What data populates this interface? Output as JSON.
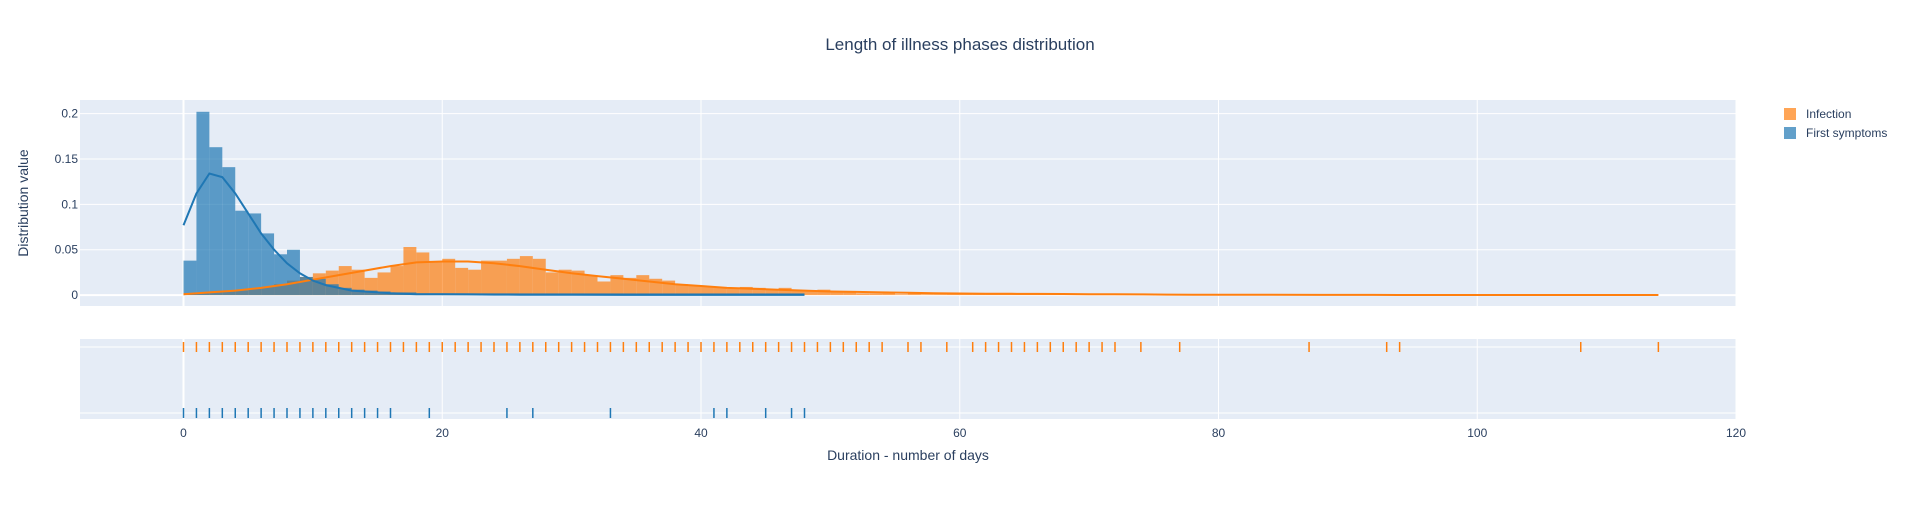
{
  "chart_data": {
    "type": "histogram",
    "title": "Length of illness phases distribution",
    "xlabel": "Duration - number of days",
    "ylabel": "Distribution value",
    "xlim": [
      -8,
      120
    ],
    "ylim": [
      -0.012,
      0.215
    ],
    "x_ticks": [
      0,
      20,
      40,
      60,
      80,
      100,
      120
    ],
    "y_ticks": [
      0,
      0.05,
      0.1,
      0.15,
      0.2
    ],
    "y_tick_labels": [
      "0",
      "0.05",
      "0.1",
      "0.15",
      "0.2"
    ],
    "grid": true,
    "legend_position": "top-right",
    "bin_width": 1,
    "series": [
      {
        "name": "Infection",
        "color": "#ff7f0e",
        "bin_start": 0,
        "values": [
          0.002,
          0.002,
          0.003,
          0.004,
          0.005,
          0.007,
          0.009,
          0.012,
          0.016,
          0.02,
          0.024,
          0.027,
          0.032,
          0.028,
          0.019,
          0.025,
          0.032,
          0.053,
          0.047,
          0.036,
          0.04,
          0.03,
          0.028,
          0.038,
          0.038,
          0.04,
          0.043,
          0.04,
          0.025,
          0.028,
          0.027,
          0.022,
          0.015,
          0.022,
          0.019,
          0.022,
          0.018,
          0.016,
          0.012,
          0.011,
          0.01,
          0.008,
          0.007,
          0.009,
          0.008,
          0.006,
          0.008,
          0.005,
          0.004,
          0.006,
          0.003,
          0.003,
          0.002,
          0.002,
          0.003,
          0.001,
          0.002,
          0.001,
          0.001,
          0.002,
          0.001,
          0.001,
          0.001,
          0.001,
          0.001,
          0.001,
          0.001,
          0.001,
          0.001,
          0.001,
          0.001,
          0.001,
          0.001,
          0.001,
          0.001,
          0.001,
          0.001,
          0.001,
          0.001,
          0.001,
          0.001,
          0.001,
          0.001,
          0.001,
          0.001,
          0.001,
          0.001,
          0.001,
          0.001,
          0.001,
          0.001,
          0.001,
          0.001,
          0.001,
          0.001,
          0.001,
          0.001,
          0.001,
          0.001,
          0.001,
          0.001,
          0.001,
          0.001,
          0.001,
          0.001,
          0.001,
          0.001,
          0.001,
          0.001,
          0.001,
          0.001,
          0.001,
          0.001,
          0.001
        ],
        "kde_x": [
          0,
          2,
          4,
          6,
          8,
          10,
          12,
          14,
          16,
          18,
          20,
          22,
          24,
          26,
          28,
          30,
          32,
          34,
          36,
          38,
          40,
          42,
          44,
          46,
          48,
          50,
          52,
          54,
          56,
          58,
          60,
          62,
          64,
          66,
          68,
          70,
          72,
          74,
          76,
          78,
          80,
          84,
          88,
          92,
          96,
          100,
          104,
          108,
          112,
          114
        ],
        "kde_y": [
          0.001,
          0.003,
          0.005,
          0.008,
          0.012,
          0.017,
          0.022,
          0.027,
          0.032,
          0.036,
          0.037,
          0.037,
          0.035,
          0.032,
          0.028,
          0.024,
          0.021,
          0.018,
          0.015,
          0.012,
          0.01,
          0.008,
          0.007,
          0.006,
          0.005,
          0.004,
          0.0035,
          0.003,
          0.0025,
          0.002,
          0.0018,
          0.0016,
          0.0014,
          0.0013,
          0.0012,
          0.001,
          0.0009,
          0.0008,
          0.0006,
          0.0005,
          0.0004,
          0.0003,
          0.0002,
          0.0002,
          0.0001,
          0.0001,
          0.0001,
          0.0001,
          0.0001,
          0.0001
        ],
        "rug": [
          0,
          1,
          2,
          3,
          4,
          5,
          6,
          7,
          8,
          9,
          10,
          11,
          12,
          13,
          14,
          15,
          16,
          17,
          18,
          19,
          20,
          21,
          22,
          23,
          24,
          25,
          26,
          27,
          28,
          29,
          30,
          31,
          32,
          33,
          34,
          35,
          36,
          37,
          38,
          39,
          40,
          41,
          42,
          43,
          44,
          45,
          46,
          47,
          48,
          49,
          50,
          51,
          52,
          53,
          54,
          56,
          57,
          59,
          61,
          62,
          63,
          64,
          65,
          66,
          67,
          68,
          69,
          70,
          71,
          72,
          74,
          77,
          87,
          93,
          94,
          108,
          114
        ]
      },
      {
        "name": "First symptoms",
        "color": "#1f77b4",
        "bin_start": 0,
        "values": [
          0.038,
          0.202,
          0.163,
          0.141,
          0.093,
          0.09,
          0.068,
          0.045,
          0.05,
          0.02,
          0.018,
          0.012,
          0.008,
          0.006,
          0.005,
          0.004,
          0.003,
          0.003,
          0.002,
          0.002,
          0.002,
          0.002,
          0.002,
          0.002,
          0.002,
          0.002,
          0.002,
          0.002,
          0.002,
          0.002,
          0.002,
          0.002,
          0.002,
          0.002,
          0.002,
          0.002,
          0.002,
          0.002,
          0.002,
          0.002,
          0.002,
          0.002,
          0.002,
          0.002,
          0.002,
          0.002,
          0.002,
          0.002
        ],
        "kde_x": [
          0,
          1,
          2,
          3,
          4,
          5,
          6,
          7,
          8,
          9,
          10,
          11,
          12,
          13,
          14,
          15,
          16,
          18,
          20,
          22,
          24,
          26,
          28,
          30,
          34,
          38,
          42,
          46,
          48
        ],
        "kde_y": [
          0.077,
          0.112,
          0.134,
          0.13,
          0.112,
          0.09,
          0.068,
          0.05,
          0.035,
          0.024,
          0.016,
          0.011,
          0.008,
          0.005,
          0.004,
          0.003,
          0.002,
          0.001,
          0.001,
          0.0008,
          0.0006,
          0.0005,
          0.0004,
          0.0003,
          0.0002,
          0.0002,
          0.0002,
          0.0002,
          0.0002
        ],
        "rug": [
          0,
          1,
          2,
          3,
          4,
          5,
          6,
          7,
          8,
          9,
          10,
          11,
          12,
          13,
          14,
          15,
          16,
          19,
          25,
          27,
          33,
          41,
          42,
          45,
          47,
          48
        ]
      }
    ]
  }
}
